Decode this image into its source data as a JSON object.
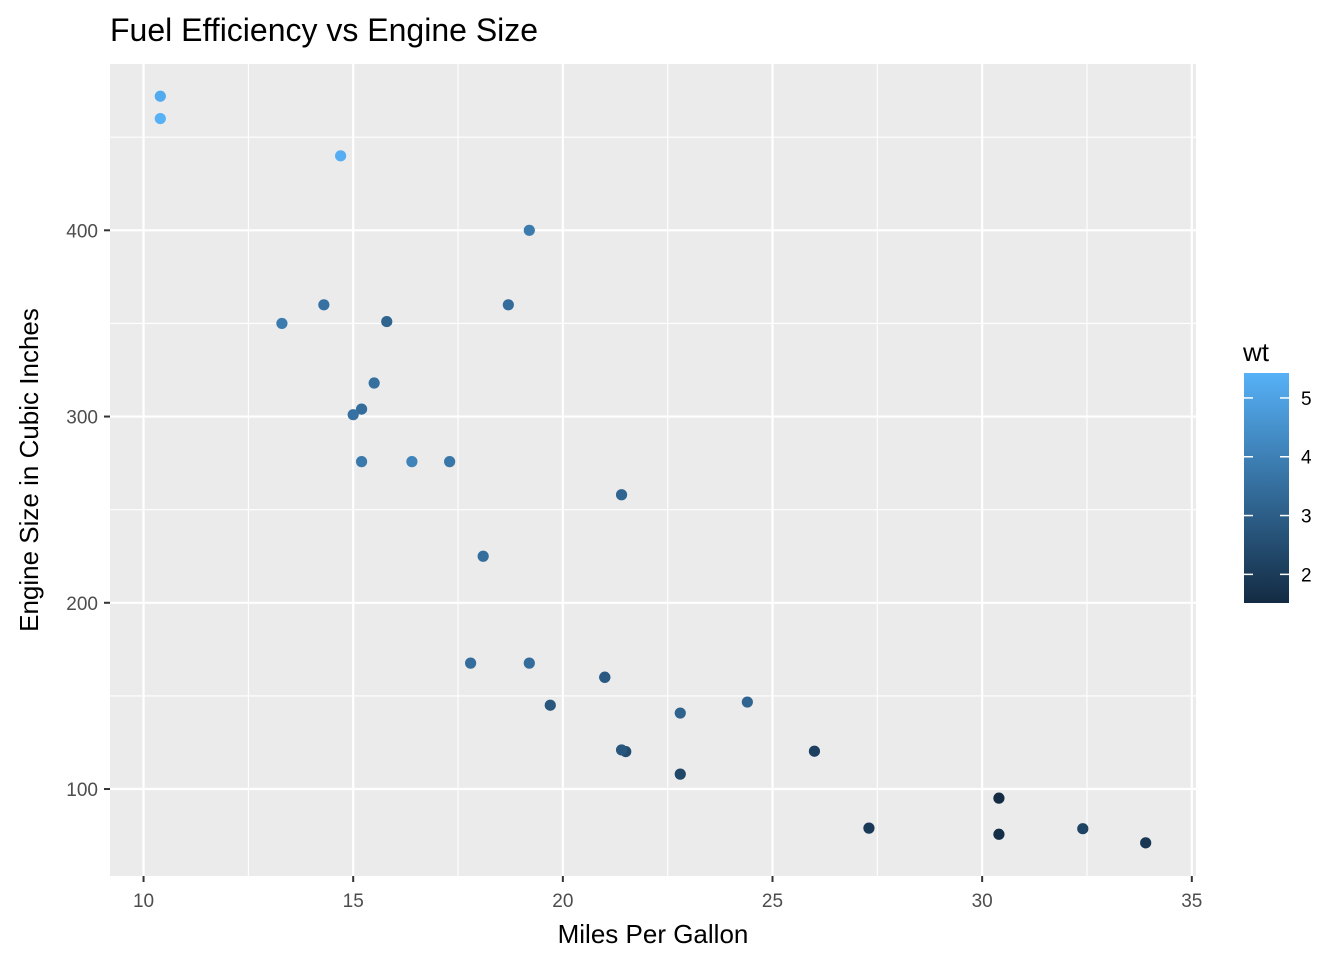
{
  "chart_data": {
    "type": "scatter",
    "title": "Fuel Efficiency vs Engine Size",
    "xlabel": "Miles Per Gallon",
    "ylabel": "Engine Size in Cubic Inches",
    "xlim": [
      9.2,
      35.1
    ],
    "ylim": [
      53.3,
      489.3
    ],
    "x_ticks": [
      10,
      15,
      20,
      25,
      30,
      35
    ],
    "y_ticks": [
      100,
      200,
      300,
      400
    ],
    "grid": true,
    "color_legend": {
      "title": "wt",
      "ticks": [
        2,
        3,
        4,
        5
      ],
      "range": [
        1.513,
        5.424
      ],
      "low_color": "#132B43",
      "high_color": "#56B1F7",
      "placement": "right"
    },
    "points": [
      {
        "x": 21.0,
        "y": 160,
        "wt": 2.62
      },
      {
        "x": 21.0,
        "y": 160,
        "wt": 2.875
      },
      {
        "x": 22.8,
        "y": 108,
        "wt": 2.32
      },
      {
        "x": 21.4,
        "y": 258,
        "wt": 3.215
      },
      {
        "x": 18.7,
        "y": 360,
        "wt": 3.44
      },
      {
        "x": 18.1,
        "y": 225,
        "wt": 3.46
      },
      {
        "x": 14.3,
        "y": 360,
        "wt": 3.57
      },
      {
        "x": 24.4,
        "y": 146.7,
        "wt": 3.19
      },
      {
        "x": 22.8,
        "y": 140.8,
        "wt": 3.15
      },
      {
        "x": 19.2,
        "y": 167.6,
        "wt": 3.44
      },
      {
        "x": 17.8,
        "y": 167.6,
        "wt": 3.44
      },
      {
        "x": 16.4,
        "y": 275.8,
        "wt": 4.07
      },
      {
        "x": 17.3,
        "y": 275.8,
        "wt": 3.73
      },
      {
        "x": 15.2,
        "y": 275.8,
        "wt": 3.78
      },
      {
        "x": 10.4,
        "y": 472,
        "wt": 5.25
      },
      {
        "x": 10.4,
        "y": 460,
        "wt": 5.424
      },
      {
        "x": 14.7,
        "y": 440,
        "wt": 5.345
      },
      {
        "x": 32.4,
        "y": 78.7,
        "wt": 2.2
      },
      {
        "x": 30.4,
        "y": 75.7,
        "wt": 1.615
      },
      {
        "x": 33.9,
        "y": 71.1,
        "wt": 1.835
      },
      {
        "x": 21.5,
        "y": 120.1,
        "wt": 2.465
      },
      {
        "x": 15.5,
        "y": 318,
        "wt": 3.52
      },
      {
        "x": 15.2,
        "y": 304,
        "wt": 3.435
      },
      {
        "x": 13.3,
        "y": 350,
        "wt": 3.84
      },
      {
        "x": 19.2,
        "y": 400,
        "wt": 3.845
      },
      {
        "x": 27.3,
        "y": 79,
        "wt": 1.935
      },
      {
        "x": 26.0,
        "y": 120.3,
        "wt": 2.14
      },
      {
        "x": 30.4,
        "y": 95.1,
        "wt": 1.513
      },
      {
        "x": 15.8,
        "y": 351,
        "wt": 3.17
      },
      {
        "x": 19.7,
        "y": 145,
        "wt": 2.77
      },
      {
        "x": 15.0,
        "y": 301,
        "wt": 3.57
      },
      {
        "x": 21.4,
        "y": 121,
        "wt": 2.78
      }
    ]
  }
}
